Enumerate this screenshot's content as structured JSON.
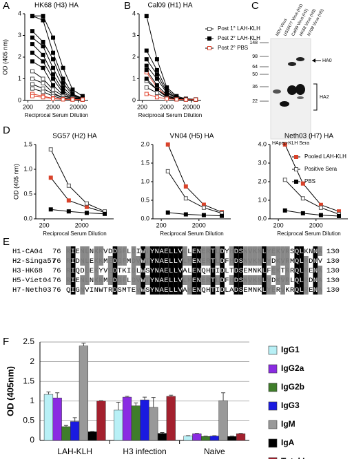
{
  "panel_labels": [
    "A",
    "B",
    "C",
    "D",
    "E",
    "F"
  ],
  "chart_data": [
    {
      "type": "line",
      "title": "HK68 (H3) HA",
      "ylabel": "OD (405 nm)",
      "xlabel": "Reciprocal Serum Dilution",
      "xscale": "log",
      "x": [
        300,
        800,
        2000,
        5000,
        12000,
        30000
      ],
      "xlim": [
        150,
        50000
      ],
      "xticks": [
        200,
        2000,
        20000
      ],
      "ylim": [
        0,
        4
      ],
      "yticks": [
        0,
        1,
        2,
        3,
        4
      ],
      "series": [
        {
          "color": "#000000",
          "marker": "filled",
          "values": [
            3.9,
            3.9,
            2.9,
            1.5,
            0.5,
            0.2
          ]
        },
        {
          "color": "#000000",
          "marker": "filled",
          "values": [
            3.9,
            3.7,
            2.2,
            1.0,
            0.3,
            0.1
          ]
        },
        {
          "color": "#000000",
          "marker": "filled",
          "values": [
            3.2,
            2.7,
            1.9,
            0.8,
            0.25,
            0.1
          ]
        },
        {
          "color": "#000000",
          "marker": "filled",
          "values": [
            2.9,
            2.5,
            1.5,
            0.6,
            0.2,
            0.1
          ]
        },
        {
          "color": "#000000",
          "marker": "filled",
          "values": [
            2.6,
            2.1,
            1.2,
            0.45,
            0.15,
            0.08
          ]
        },
        {
          "color": "#000000",
          "marker": "filled",
          "values": [
            2.2,
            1.8,
            1.0,
            0.35,
            0.12,
            0.05
          ]
        },
        {
          "color": "#000000",
          "marker": "filled",
          "values": [
            1.8,
            1.5,
            0.7,
            0.25,
            0.1,
            0.05
          ]
        },
        {
          "color": "#555555",
          "marker": "open",
          "values": [
            1.35,
            1.0,
            0.5,
            0.2,
            0.1,
            0.05
          ]
        },
        {
          "color": "#555555",
          "marker": "open",
          "values": [
            1.0,
            0.8,
            0.35,
            0.12,
            0.06,
            0.05
          ]
        },
        {
          "color": "#555555",
          "marker": "open",
          "values": [
            0.75,
            0.55,
            0.3,
            0.12,
            0.05,
            0.04
          ]
        },
        {
          "color": "#555555",
          "marker": "open",
          "values": [
            0.55,
            0.4,
            0.2,
            0.08,
            0.05,
            0.04
          ]
        },
        {
          "color": "#e0402a",
          "marker": "open",
          "values": [
            0.3,
            0.2,
            0.1,
            0.06,
            0.05,
            0.04
          ]
        },
        {
          "color": "#e0402a",
          "marker": "open",
          "values": [
            0.2,
            0.15,
            0.08,
            0.05,
            0.04,
            0.04
          ]
        }
      ]
    },
    {
      "type": "line",
      "title": "Cal09 (H1) HA",
      "xlabel": "Reciprocal Serum Dilution",
      "legend": "right",
      "xscale": "log",
      "x": [
        300,
        800,
        2000,
        5000,
        12000,
        30000
      ],
      "xlim": [
        150,
        50000
      ],
      "xticks": [
        200,
        2000,
        20000
      ],
      "ylim": [
        0,
        4
      ],
      "yticks": [
        0,
        1,
        2,
        3,
        4
      ],
      "series": [
        {
          "name": "Post 1° LAH-KLH",
          "color": "#555555",
          "marker": "open",
          "values": [
            0.9,
            0.5,
            0.15,
            0.06,
            0.05,
            0.04
          ]
        },
        {
          "name": "Post 2° LAH-KLH",
          "color": "#000000",
          "marker": "filled",
          "values": [
            3.9,
            1.9,
            0.6,
            0.2,
            0.08,
            0.05
          ]
        },
        {
          "name": "Post 2° PBS",
          "color": "#e0402a",
          "marker": "open",
          "values": [
            1.3,
            0.6,
            0.2,
            0.08,
            0.05,
            0.04
          ]
        },
        {
          "color": "#000000",
          "marker": "filled",
          "values": [
            2.3,
            1.4,
            0.5,
            0.15,
            0.06,
            0.05
          ]
        },
        {
          "color": "#000000",
          "marker": "filled",
          "values": [
            1.9,
            1.2,
            0.4,
            0.12,
            0.05,
            0.04
          ]
        },
        {
          "color": "#000000",
          "marker": "filled",
          "values": [
            1.6,
            1.0,
            0.35,
            0.1,
            0.05,
            0.04
          ]
        },
        {
          "color": "#000000",
          "marker": "filled",
          "values": [
            1.4,
            0.7,
            0.25,
            0.08,
            0.05,
            0.04
          ]
        },
        {
          "color": "#000000",
          "marker": "filled",
          "values": [
            1.0,
            0.5,
            0.2,
            0.07,
            0.05,
            0.04
          ]
        },
        {
          "color": "#555555",
          "marker": "open",
          "values": [
            0.6,
            0.35,
            0.1,
            0.05,
            0.04,
            0.04
          ]
        },
        {
          "color": "#e0402a",
          "marker": "open",
          "values": [
            0.3,
            0.15,
            0.08,
            0.05,
            0.04,
            0.04
          ]
        }
      ]
    },
    {
      "type": "line",
      "title": "SG57 (H2) HA",
      "ylabel": "OD (405 nm)",
      "xlabel": "Reciprocal Serum Dilution",
      "xscale": "log",
      "x": [
        300,
        900,
        2700,
        8100
      ],
      "xlim": [
        120,
        14000
      ],
      "xticks": [
        200,
        2000
      ],
      "ylim": [
        0,
        1.5
      ],
      "yticks": [
        {
          "value": 0,
          "label": "0.0"
        },
        {
          "value": 0.5,
          "label": "0.5"
        },
        {
          "value": 1,
          "label": "1.0"
        },
        {
          "value": 1.5,
          "label": "1.5"
        }
      ],
      "series": [
        {
          "color": "#d9432b",
          "marker": "filled",
          "values": [
            0.83,
            0.37,
            0.24,
            0.13
          ]
        },
        {
          "color": "#555555",
          "marker": "open",
          "values": [
            1.4,
            0.67,
            0.31,
            0.15
          ]
        },
        {
          "color": "#000000",
          "marker": "filled",
          "values": [
            0.19,
            0.15,
            0.12,
            0.1
          ]
        }
      ]
    },
    {
      "type": "line",
      "title": "VN04 (H5) HA",
      "xlabel": "Reciprocal Serum Dilution",
      "xscale": "log",
      "x": [
        300,
        900,
        2700,
        8100
      ],
      "xlim": [
        120,
        14000
      ],
      "xticks": [
        200,
        2000
      ],
      "ylim": [
        0,
        2
      ],
      "yticks": [
        {
          "value": 0,
          "label": "0.0"
        },
        {
          "value": 0.5,
          "label": "0.5"
        },
        {
          "value": 1,
          "label": "1.0"
        },
        {
          "value": 1.5,
          "label": "1.5"
        },
        {
          "value": 2,
          "label": "2.0"
        }
      ],
      "series": [
        {
          "color": "#d9432b",
          "marker": "filled",
          "values": [
            2.0,
            0.87,
            0.38,
            0.18
          ]
        },
        {
          "color": "#555555",
          "marker": "open",
          "values": [
            1.28,
            0.55,
            0.3,
            0.15
          ]
        },
        {
          "color": "#000000",
          "marker": "filled",
          "values": [
            0.17,
            0.12,
            0.1,
            0.08
          ]
        }
      ]
    },
    {
      "type": "line",
      "title": "Neth03 (H7) HA",
      "xlabel": "Reciprocal Serum Dilution",
      "legend": "upper right",
      "xscale": "log",
      "x": [
        300,
        900,
        2700,
        8100
      ],
      "xlim": [
        120,
        14000
      ],
      "xticks": [
        200,
        2000
      ],
      "ylim": [
        0,
        4
      ],
      "yticks": [
        {
          "value": 0,
          "label": "0.0"
        },
        {
          "value": 1,
          "label": "1.0"
        },
        {
          "value": 2,
          "label": "2.0"
        },
        {
          "value": 3,
          "label": "3.0"
        },
        {
          "value": 4,
          "label": "4.0"
        }
      ],
      "series": [
        {
          "name": "Pooled LAH-KLH",
          "color": "#d9432b",
          "marker": "filled",
          "values": [
            4.0,
            1.9,
            0.75,
            0.4
          ]
        },
        {
          "name": "Positive Sera",
          "color": "#555555",
          "marker": "open",
          "values": [
            2.1,
            1.1,
            0.6,
            0.25
          ]
        },
        {
          "name": "PBS",
          "color": "#000000",
          "marker": "filled",
          "values": [
            0.45,
            0.3,
            0.2,
            0.15
          ]
        }
      ]
    },
    {
      "type": "bar",
      "ylabel": "OD (405nm)",
      "categories": [
        "LAH-KLH",
        "H3 infection",
        "Naive"
      ],
      "ylim": [
        0,
        2.5
      ],
      "yticks": [
        0,
        0.5,
        1,
        1.5,
        2,
        2.5
      ],
      "grid": true,
      "series": [
        {
          "name": "IgG1",
          "color": "#b8f0f6",
          "values": [
            1.17,
            0.77,
            0.11
          ],
          "errors": [
            0.06,
            0.2,
            0.01
          ]
        },
        {
          "name": "IgG2a",
          "color": "#8a2be2",
          "values": [
            1.08,
            1.1,
            0.17
          ],
          "errors": [
            0.13,
            0.02,
            0.01
          ]
        },
        {
          "name": "IgG2b",
          "color": "#3f7d2a",
          "values": [
            0.35,
            0.88,
            0.1
          ],
          "errors": [
            0.03,
            0.07,
            0.01
          ]
        },
        {
          "name": "IgG3",
          "color": "#1a1ae0",
          "values": [
            0.48,
            1.03,
            0.11
          ],
          "errors": [
            0.1,
            0.07,
            0.01
          ]
        },
        {
          "name": "IgM",
          "color": "#999999",
          "values": [
            2.4,
            0.84,
            1.01
          ],
          "errors": [
            0.07,
            0.25,
            0.2
          ]
        },
        {
          "name": "IgA",
          "color": "#000000",
          "values": [
            0.22,
            0.18,
            0.1
          ],
          "errors": [
            0.01,
            0.02,
            0.01
          ]
        },
        {
          "name": "Total Ig",
          "color": "#a3202e",
          "values": [
            1.0,
            1.12,
            0.17
          ],
          "errors": [
            0.01,
            0.03,
            0.01
          ]
        }
      ]
    }
  ],
  "blot": {
    "lanes": [
      "NDV Virus",
      "USSR77 Virus (H1)",
      "Cal09 Virus (H1)",
      "HK68 Virus (H3)",
      "NY08 Virus (H5)"
    ],
    "markers": [
      148,
      98,
      64,
      50,
      36,
      22
    ],
    "band_labels": [
      "HA0",
      "HA2"
    ],
    "caption": "HApep-KLH Sera"
  },
  "alignment": {
    "rows": [
      {
        "name": "H1-CA04",
        "start": 76,
        "sequence": "RIENLNKKVDDGFLDIWTYNAELLVLLENERTLDYHDSNVKNLYEKVRSQLKNNA",
        "end": 130
      },
      {
        "name": "H2-Singa57",
        "start": 76,
        "sequence": "RIDNLEKKMEDGFMDVWTYNAELLVLMENERTLDFHDSNVKNLYDKVRMQLRDNV",
        "end": 130
      },
      {
        "name": "H3-HK68",
        "start": 76,
        "sequence": "RIQDLEKYVEDTKIDLWSYNAELLVALENQHTIDLTDSEMNKLFEKTRRQLRENA",
        "end": 130
      },
      {
        "name": "H5-Viet04",
        "start": 76,
        "sequence": "RIENLNKKMEDGFLDVWTYNAELLVLMENERTLDFHDSNVKNLYDKVRLQLRDNA",
        "end": 130
      },
      {
        "name": "H7-Neth03",
        "start": 76,
        "sequence": "QIGNVINWTRDSMTEVWSYNAELLVAMENQHTIDLADSEMNKLYERVKRQLRENA",
        "end": 130
      }
    ]
  }
}
